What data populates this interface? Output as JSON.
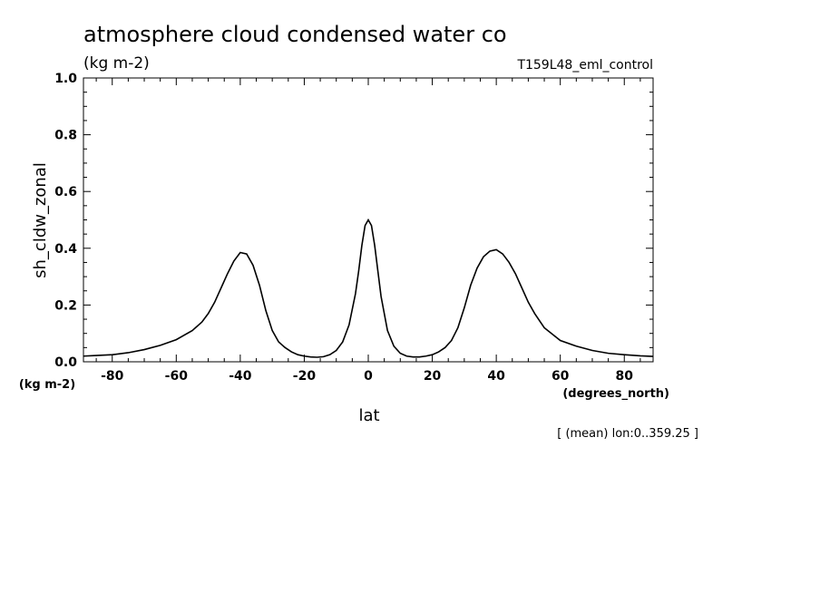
{
  "chart_data": {
    "type": "line",
    "title": "atmosphere cloud condensed water co",
    "units_label": "(kg m-2)",
    "run_label": "T159L48_eml_control",
    "ylabel": "sh_cldw_zonal",
    "y_units_label": "(kg m-2)",
    "xlabel": "lat",
    "x_units_label": "(degrees_north)",
    "footnote": "[ (mean) lon:0..359.25 ]",
    "xlim": [
      -89,
      89
    ],
    "ylim": [
      0,
      1
    ],
    "x_ticks": [
      "-80",
      "-60",
      "-40",
      "-20",
      "0",
      "20",
      "40",
      "60",
      "80"
    ],
    "y_ticks": [
      "0.0",
      "0.2",
      "0.4",
      "0.6",
      "0.8",
      "1.0"
    ],
    "grid": false,
    "series": [
      {
        "x": [
          -89,
          -85,
          -80,
          -75,
          -70,
          -65,
          -60,
          -55,
          -52,
          -50,
          -48,
          -46,
          -44,
          -42,
          -40,
          -38,
          -36,
          -34,
          -32,
          -30,
          -28,
          -26,
          -24,
          -22,
          -20,
          -18,
          -16,
          -14,
          -12,
          -10,
          -8,
          -6,
          -4,
          -3,
          -2,
          -1,
          0,
          1,
          2,
          3,
          4,
          6,
          8,
          10,
          12,
          14,
          16,
          18,
          20,
          22,
          24,
          26,
          28,
          30,
          32,
          34,
          36,
          38,
          40,
          42,
          44,
          46,
          48,
          50,
          52,
          55,
          60,
          65,
          70,
          75,
          80,
          85,
          89
        ],
        "y": [
          0.02,
          0.022,
          0.025,
          0.032,
          0.043,
          0.058,
          0.078,
          0.11,
          0.14,
          0.17,
          0.21,
          0.26,
          0.31,
          0.355,
          0.385,
          0.38,
          0.34,
          0.27,
          0.18,
          0.11,
          0.07,
          0.05,
          0.035,
          0.025,
          0.02,
          0.017,
          0.016,
          0.018,
          0.025,
          0.04,
          0.07,
          0.13,
          0.24,
          0.32,
          0.41,
          0.48,
          0.5,
          0.48,
          0.41,
          0.32,
          0.23,
          0.11,
          0.055,
          0.03,
          0.02,
          0.017,
          0.017,
          0.02,
          0.025,
          0.035,
          0.05,
          0.075,
          0.12,
          0.19,
          0.27,
          0.33,
          0.37,
          0.39,
          0.395,
          0.38,
          0.35,
          0.31,
          0.26,
          0.21,
          0.17,
          0.12,
          0.075,
          0.055,
          0.04,
          0.03,
          0.025,
          0.021,
          0.019
        ]
      }
    ]
  }
}
